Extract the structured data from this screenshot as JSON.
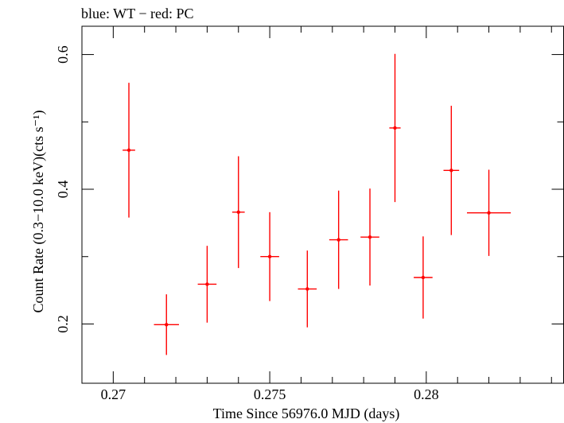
{
  "chart_data": {
    "type": "scatter",
    "title": "blue: WT − red: PC",
    "xlabel": "Time Since 56976.0 MJD (days)",
    "ylabel": "Count Rate (0.3−10.0 keV)(cts s⁻¹)",
    "xlim": [
      0.269,
      0.2844
    ],
    "ylim": [
      0.112,
      0.642
    ],
    "xticks": [
      0.27,
      0.275,
      0.28
    ],
    "xtick_labels": [
      "0.27",
      "0.275",
      "0.28"
    ],
    "yticks": [
      0.2,
      0.4,
      0.6
    ],
    "ytick_labels": [
      "0.2",
      "0.4",
      "0.6"
    ],
    "grid": false,
    "series": [
      {
        "color": "#ff0000",
        "points": [
          {
            "x": 0.2705,
            "xerr": 0.0002,
            "y": 0.458,
            "yerr_low": 0.1,
            "yerr_high": 0.1
          },
          {
            "x": 0.2717,
            "xerr": 0.0004,
            "y": 0.199,
            "yerr_low": 0.045,
            "yerr_high": 0.045
          },
          {
            "x": 0.273,
            "xerr": 0.0003,
            "y": 0.259,
            "yerr_low": 0.057,
            "yerr_high": 0.057
          },
          {
            "x": 0.274,
            "xerr": 0.0002,
            "y": 0.366,
            "yerr_low": 0.083,
            "yerr_high": 0.083
          },
          {
            "x": 0.275,
            "xerr": 0.0003,
            "y": 0.3,
            "yerr_low": 0.066,
            "yerr_high": 0.066
          },
          {
            "x": 0.2762,
            "xerr": 0.0003,
            "y": 0.252,
            "yerr_low": 0.057,
            "yerr_high": 0.057
          },
          {
            "x": 0.2772,
            "xerr": 0.0003,
            "y": 0.325,
            "yerr_low": 0.073,
            "yerr_high": 0.073
          },
          {
            "x": 0.2782,
            "xerr": 0.0003,
            "y": 0.329,
            "yerr_low": 0.072,
            "yerr_high": 0.072
          },
          {
            "x": 0.279,
            "xerr": 0.00018,
            "y": 0.491,
            "yerr_low": 0.11,
            "yerr_high": 0.11
          },
          {
            "x": 0.2799,
            "xerr": 0.0003,
            "y": 0.269,
            "yerr_low": 0.061,
            "yerr_high": 0.061
          },
          {
            "x": 0.2808,
            "xerr": 0.00025,
            "y": 0.428,
            "yerr_low": 0.096,
            "yerr_high": 0.096
          },
          {
            "x": 0.282,
            "xerr": 0.0007,
            "y": 0.365,
            "yerr_low": 0.064,
            "yerr_high": 0.064
          }
        ]
      }
    ]
  }
}
